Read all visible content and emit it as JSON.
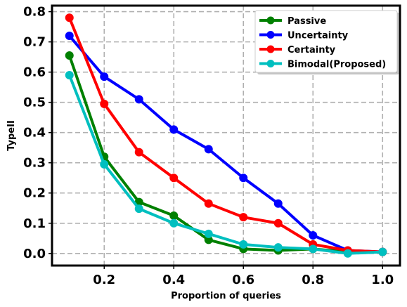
{
  "chart_data": {
    "type": "line",
    "xlabel": "Proportion of queries",
    "ylabel": "TypeII",
    "xlim": [
      0.05,
      1.05
    ],
    "ylim": [
      -0.04,
      0.82
    ],
    "xticks": [
      0.2,
      0.4,
      0.6,
      0.8,
      1.0
    ],
    "xtick_labels": [
      "0.2",
      "0.4",
      "0.6",
      "0.8",
      "1.0"
    ],
    "yticks": [
      0.0,
      0.1,
      0.2,
      0.3,
      0.4,
      0.5,
      0.6,
      0.7,
      0.8
    ],
    "ytick_labels": [
      "0.0",
      "0.1",
      "0.2",
      "0.3",
      "0.4",
      "0.5",
      "0.6",
      "0.7",
      "0.8"
    ],
    "grid": true,
    "legend_position": "top-right",
    "x": [
      0.1,
      0.2,
      0.3,
      0.4,
      0.5,
      0.6,
      0.7,
      0.8,
      0.9,
      1.0
    ],
    "series": [
      {
        "name": "Passive",
        "color": "#008000",
        "values": [
          0.655,
          0.32,
          0.17,
          0.125,
          0.045,
          0.015,
          0.01,
          0.015,
          0.005,
          0.005
        ]
      },
      {
        "name": "Uncertainty",
        "color": "#0000ff",
        "values": [
          0.72,
          0.585,
          0.51,
          0.41,
          0.345,
          0.25,
          0.165,
          0.06,
          0.01,
          0.005
        ]
      },
      {
        "name": "Certainty",
        "color": "#ff0000",
        "values": [
          0.78,
          0.495,
          0.335,
          0.25,
          0.165,
          0.12,
          0.1,
          0.03,
          0.01,
          0.005
        ]
      },
      {
        "name": "Bimodal(Proposed)",
        "color": "#00bfbf",
        "values": [
          0.59,
          0.295,
          0.148,
          0.1,
          0.065,
          0.03,
          0.02,
          0.015,
          0.0,
          0.005
        ]
      }
    ]
  }
}
